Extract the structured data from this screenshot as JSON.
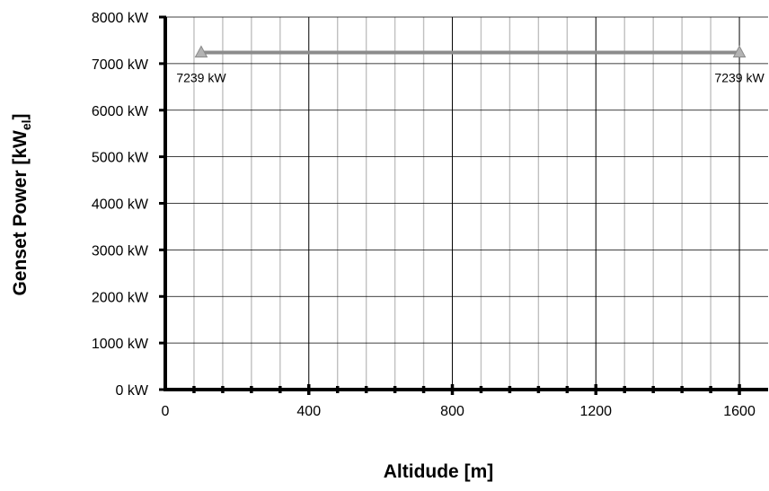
{
  "chart_data": {
    "type": "line",
    "title": "",
    "xlabel": "Altidude [m]",
    "ylabel": {
      "main": "Genset Power [kW",
      "subscript": "el",
      "suffix": "]"
    },
    "xlim": [
      0,
      1680
    ],
    "ylim": [
      0,
      8000
    ],
    "x_major_ticks": [
      0,
      400,
      800,
      1200,
      1600
    ],
    "x_tick_labels": [
      "0",
      "400",
      "800",
      "1200",
      "1600"
    ],
    "x_minor_step": 80,
    "y_ticks": [
      0,
      1000,
      2000,
      3000,
      4000,
      5000,
      6000,
      7000,
      8000
    ],
    "y_tick_labels": [
      "0 kW",
      "1000 kW",
      "2000 kW",
      "3000 kW",
      "4000 kW",
      "5000 kW",
      "6000 kW",
      "7000 kW",
      "8000 kW"
    ],
    "grid": true,
    "legend": "none",
    "series": [
      {
        "x": [
          100,
          1600
        ],
        "y": [
          7239,
          7239
        ],
        "data_labels": [
          "7239 kW",
          "7239 kW"
        ],
        "marker": "triangle",
        "color": "#8c8c8c",
        "marker_color": "#b3b3b3"
      }
    ],
    "colors": {
      "major_grid": "#000000",
      "minor_grid": "#c0c0c0",
      "axis": "#000000"
    }
  }
}
